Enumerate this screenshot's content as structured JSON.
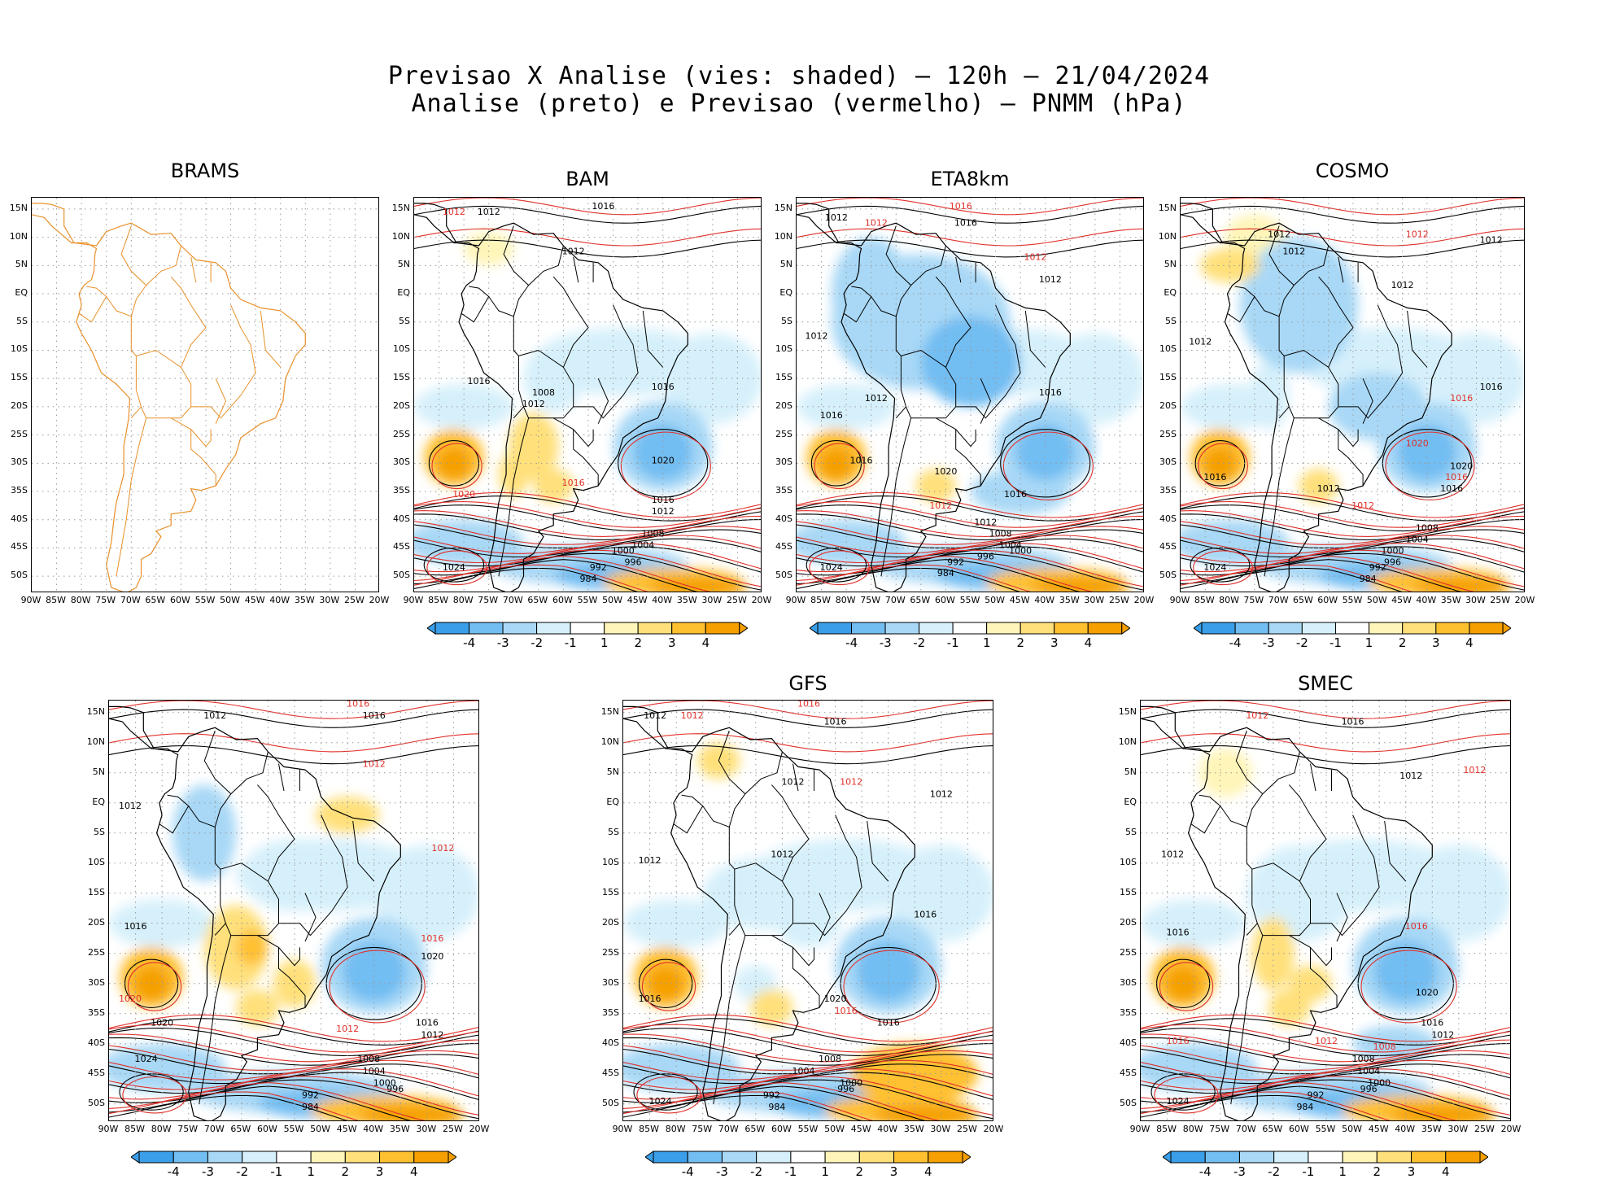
{
  "header": {
    "line1": "Previsao X Analise (vies: shaded) — 120h — 21/04/2024",
    "line2": "Analise (preto) e Previsao (vermelho) — PNMM (hPa)"
  },
  "colors": {
    "analysis_contour": "#000000",
    "forecast_contour": "#e0302a",
    "coast_brams": "#e8902a",
    "neg4": "#3a9ee8",
    "neg3": "#72bdf2",
    "neg2": "#a8d8f6",
    "neg1": "#d6f0fb",
    "zero": "#ffffff",
    "pos1": "#fff5b8",
    "pos2": "#ffe07a",
    "pos3": "#ffc030",
    "pos4": "#f5a000"
  },
  "chart_data": {
    "type": "heatmap",
    "lat_ticks": [
      "15N",
      "10N",
      "5N",
      "EQ",
      "5S",
      "10S",
      "15S",
      "20S",
      "25S",
      "30S",
      "35S",
      "40S",
      "45S",
      "50S"
    ],
    "lon_ticks": [
      "90W",
      "85W",
      "80W",
      "75W",
      "70W",
      "65W",
      "60W",
      "55W",
      "50W",
      "45W",
      "40W",
      "35W",
      "30W",
      "25W",
      "20W"
    ],
    "lat_range": [
      17,
      -53
    ],
    "lon_range": [
      -90,
      -20
    ],
    "colorbar_levels": [
      "-4",
      "-3",
      "-2",
      "-1",
      "1",
      "2",
      "3",
      "4"
    ],
    "panels": [
      {
        "title": "BRAMS",
        "has_data": false,
        "contour_labels": []
      },
      {
        "title": "BAM",
        "has_data": true,
        "contour_labels": [
          {
            "text": "1016",
            "color": "black",
            "lon": -52,
            "lat": 15
          },
          {
            "text": "1012",
            "color": "black",
            "lon": -75,
            "lat": 14
          },
          {
            "text": "1012",
            "color": "red",
            "lon": -82,
            "lat": 14
          },
          {
            "text": "1012",
            "color": "black",
            "lon": -58,
            "lat": 7
          },
          {
            "text": "1012",
            "color": "black",
            "lon": -66,
            "lat": -20
          },
          {
            "text": "1016",
            "color": "black",
            "lon": -40,
            "lat": -17
          },
          {
            "text": "1008",
            "color": "black",
            "lon": -64,
            "lat": -18
          },
          {
            "text": "1016",
            "color": "black",
            "lon": -77,
            "lat": -16
          },
          {
            "text": "1020",
            "color": "black",
            "lon": -40,
            "lat": -30
          },
          {
            "text": "1016",
            "color": "red",
            "lon": -58,
            "lat": -34
          },
          {
            "text": "1016",
            "color": "black",
            "lon": -40,
            "lat": -37
          },
          {
            "text": "1012",
            "color": "black",
            "lon": -40,
            "lat": -39
          },
          {
            "text": "1008",
            "color": "black",
            "lon": -42,
            "lat": -43
          },
          {
            "text": "1004",
            "color": "black",
            "lon": -44,
            "lat": -45
          },
          {
            "text": "1000",
            "color": "black",
            "lon": -48,
            "lat": -46
          },
          {
            "text": "996",
            "color": "black",
            "lon": -46,
            "lat": -48
          },
          {
            "text": "992",
            "color": "black",
            "lon": -53,
            "lat": -49
          },
          {
            "text": "984",
            "color": "black",
            "lon": -55,
            "lat": -51
          },
          {
            "text": "1024",
            "color": "black",
            "lon": -82,
            "lat": -49
          },
          {
            "text": "1020",
            "color": "red",
            "lon": -80,
            "lat": -36
          }
        ]
      },
      {
        "title": "ETA8km",
        "has_data": true,
        "contour_labels": [
          {
            "text": "1012",
            "color": "black",
            "lon": -82,
            "lat": 13
          },
          {
            "text": "1012",
            "color": "red",
            "lon": -74,
            "lat": 12
          },
          {
            "text": "1016",
            "color": "black",
            "lon": -56,
            "lat": 12
          },
          {
            "text": "1016",
            "color": "red",
            "lon": -57,
            "lat": 15
          },
          {
            "text": "1012",
            "color": "red",
            "lon": -42,
            "lat": 6
          },
          {
            "text": "1012",
            "color": "black",
            "lon": -39,
            "lat": 2
          },
          {
            "text": "1012",
            "color": "black",
            "lon": -86,
            "lat": -8
          },
          {
            "text": "1016",
            "color": "black",
            "lon": -39,
            "lat": -18
          },
          {
            "text": "1016",
            "color": "black",
            "lon": -83,
            "lat": -22
          },
          {
            "text": "1012",
            "color": "black",
            "lon": -74,
            "lat": -19
          },
          {
            "text": "1020",
            "color": "black",
            "lon": -60,
            "lat": -32
          },
          {
            "text": "1016",
            "color": "black",
            "lon": -77,
            "lat": -30
          },
          {
            "text": "1012",
            "color": "red",
            "lon": -61,
            "lat": -38
          },
          {
            "text": "1016",
            "color": "black",
            "lon": -46,
            "lat": -36
          },
          {
            "text": "1012",
            "color": "black",
            "lon": -52,
            "lat": -41
          },
          {
            "text": "1008",
            "color": "black",
            "lon": -49,
            "lat": -43
          },
          {
            "text": "1004",
            "color": "black",
            "lon": -47,
            "lat": -45
          },
          {
            "text": "1000",
            "color": "black",
            "lon": -45,
            "lat": -46
          },
          {
            "text": "996",
            "color": "black",
            "lon": -52,
            "lat": -47
          },
          {
            "text": "992",
            "color": "black",
            "lon": -58,
            "lat": -48
          },
          {
            "text": "984",
            "color": "black",
            "lon": -60,
            "lat": -50
          },
          {
            "text": "1024",
            "color": "black",
            "lon": -83,
            "lat": -49
          }
        ]
      },
      {
        "title": "COSMO",
        "has_data": true,
        "contour_labels": [
          {
            "text": "1012",
            "color": "red",
            "lon": -42,
            "lat": 10
          },
          {
            "text": "1012",
            "color": "black",
            "lon": -27,
            "lat": 9
          },
          {
            "text": "1012",
            "color": "black",
            "lon": -70,
            "lat": 10
          },
          {
            "text": "1012",
            "color": "black",
            "lon": -67,
            "lat": 7
          },
          {
            "text": "1012",
            "color": "black",
            "lon": -45,
            "lat": 1
          },
          {
            "text": "1012",
            "color": "black",
            "lon": -86,
            "lat": -9
          },
          {
            "text": "1016",
            "color": "black",
            "lon": -27,
            "lat": -17
          },
          {
            "text": "1016",
            "color": "red",
            "lon": -33,
            "lat": -19
          },
          {
            "text": "1020",
            "color": "red",
            "lon": -42,
            "lat": -27
          },
          {
            "text": "1020",
            "color": "black",
            "lon": -33,
            "lat": -31
          },
          {
            "text": "1016",
            "color": "red",
            "lon": -34,
            "lat": -33
          },
          {
            "text": "1016",
            "color": "black",
            "lon": -35,
            "lat": -35
          },
          {
            "text": "1012",
            "color": "black",
            "lon": -60,
            "lat": -35
          },
          {
            "text": "1016",
            "color": "black",
            "lon": -83,
            "lat": -33
          },
          {
            "text": "1012",
            "color": "red",
            "lon": -53,
            "lat": -38
          },
          {
            "text": "1008",
            "color": "black",
            "lon": -40,
            "lat": -42
          },
          {
            "text": "1004",
            "color": "black",
            "lon": -42,
            "lat": -44
          },
          {
            "text": "1000",
            "color": "black",
            "lon": -47,
            "lat": -46
          },
          {
            "text": "996",
            "color": "black",
            "lon": -47,
            "lat": -48
          },
          {
            "text": "992",
            "color": "black",
            "lon": -50,
            "lat": -49
          },
          {
            "text": "984",
            "color": "black",
            "lon": -52,
            "lat": -51
          },
          {
            "text": "1024",
            "color": "black",
            "lon": -83,
            "lat": -49
          }
        ]
      },
      {
        "title": "",
        "has_data": true,
        "contour_labels": [
          {
            "text": "1016",
            "color": "red",
            "lon": -43,
            "lat": 16
          },
          {
            "text": "1016",
            "color": "black",
            "lon": -40,
            "lat": 14
          },
          {
            "text": "1012",
            "color": "black",
            "lon": -70,
            "lat": 14
          },
          {
            "text": "1012",
            "color": "red",
            "lon": -40,
            "lat": 6
          },
          {
            "text": "1012",
            "color": "black",
            "lon": -86,
            "lat": -1
          },
          {
            "text": "1012",
            "color": "red",
            "lon": -27,
            "lat": -8
          },
          {
            "text": "1016",
            "color": "black",
            "lon": -85,
            "lat": -21
          },
          {
            "text": "1016",
            "color": "red",
            "lon": -29,
            "lat": -23
          },
          {
            "text": "1020",
            "color": "black",
            "lon": -29,
            "lat": -26
          },
          {
            "text": "1020",
            "color": "red",
            "lon": -86,
            "lat": -33
          },
          {
            "text": "1020",
            "color": "black",
            "lon": -80,
            "lat": -37
          },
          {
            "text": "1016",
            "color": "black",
            "lon": -30,
            "lat": -37
          },
          {
            "text": "1012",
            "color": "black",
            "lon": -29,
            "lat": -39
          },
          {
            "text": "1012",
            "color": "red",
            "lon": -45,
            "lat": -38
          },
          {
            "text": "1008",
            "color": "black",
            "lon": -41,
            "lat": -43
          },
          {
            "text": "1004",
            "color": "black",
            "lon": -40,
            "lat": -45
          },
          {
            "text": "1000",
            "color": "black",
            "lon": -38,
            "lat": -47
          },
          {
            "text": "996",
            "color": "black",
            "lon": -36,
            "lat": -48
          },
          {
            "text": "992",
            "color": "black",
            "lon": -52,
            "lat": -49
          },
          {
            "text": "984",
            "color": "black",
            "lon": -52,
            "lat": -51
          },
          {
            "text": "1024",
            "color": "black",
            "lon": -83,
            "lat": -43
          }
        ]
      },
      {
        "title": "GFS",
        "has_data": true,
        "contour_labels": [
          {
            "text": "1016",
            "color": "red",
            "lon": -55,
            "lat": 16
          },
          {
            "text": "1016",
            "color": "black",
            "lon": -50,
            "lat": 13
          },
          {
            "text": "1012",
            "color": "black",
            "lon": -84,
            "lat": 14
          },
          {
            "text": "1012",
            "color": "red",
            "lon": -77,
            "lat": 14
          },
          {
            "text": "1012",
            "color": "black",
            "lon": -58,
            "lat": 3
          },
          {
            "text": "1012",
            "color": "red",
            "lon": -47,
            "lat": 3
          },
          {
            "text": "1012",
            "color": "black",
            "lon": -30,
            "lat": 1
          },
          {
            "text": "1012",
            "color": "black",
            "lon": -85,
            "lat": -10
          },
          {
            "text": "1012",
            "color": "black",
            "lon": -60,
            "lat": -9
          },
          {
            "text": "1016",
            "color": "black",
            "lon": -33,
            "lat": -19
          },
          {
            "text": "1016",
            "color": "black",
            "lon": -85,
            "lat": -33
          },
          {
            "text": "1020",
            "color": "black",
            "lon": -50,
            "lat": -33
          },
          {
            "text": "1016",
            "color": "red",
            "lon": -48,
            "lat": -35
          },
          {
            "text": "1016",
            "color": "black",
            "lon": -40,
            "lat": -37
          },
          {
            "text": "1008",
            "color": "black",
            "lon": -51,
            "lat": -43
          },
          {
            "text": "1004",
            "color": "black",
            "lon": -56,
            "lat": -45
          },
          {
            "text": "1000",
            "color": "black",
            "lon": -47,
            "lat": -47
          },
          {
            "text": "996",
            "color": "black",
            "lon": -48,
            "lat": -48
          },
          {
            "text": "992",
            "color": "black",
            "lon": -62,
            "lat": -49
          },
          {
            "text": "984",
            "color": "black",
            "lon": -61,
            "lat": -51
          },
          {
            "text": "1024",
            "color": "black",
            "lon": -83,
            "lat": -50
          }
        ]
      },
      {
        "title": "SMEC",
        "has_data": true,
        "contour_labels": [
          {
            "text": "1016",
            "color": "black",
            "lon": -50,
            "lat": 13
          },
          {
            "text": "1012",
            "color": "red",
            "lon": -68,
            "lat": 14
          },
          {
            "text": "1012",
            "color": "red",
            "lon": -27,
            "lat": 5
          },
          {
            "text": "1012",
            "color": "black",
            "lon": -39,
            "lat": 4
          },
          {
            "text": "1012",
            "color": "black",
            "lon": -84,
            "lat": -9
          },
          {
            "text": "1016",
            "color": "black",
            "lon": -83,
            "lat": -22
          },
          {
            "text": "1016",
            "color": "red",
            "lon": -38,
            "lat": -21
          },
          {
            "text": "1020",
            "color": "black",
            "lon": -36,
            "lat": -32
          },
          {
            "text": "1016",
            "color": "black",
            "lon": -35,
            "lat": -37
          },
          {
            "text": "1012",
            "color": "black",
            "lon": -33,
            "lat": -39
          },
          {
            "text": "1012",
            "color": "red",
            "lon": -55,
            "lat": -40
          },
          {
            "text": "1008",
            "color": "red",
            "lon": -44,
            "lat": -41
          },
          {
            "text": "1008",
            "color": "black",
            "lon": -48,
            "lat": -43
          },
          {
            "text": "1004",
            "color": "black",
            "lon": -47,
            "lat": -45
          },
          {
            "text": "1000",
            "color": "black",
            "lon": -45,
            "lat": -47
          },
          {
            "text": "996",
            "color": "black",
            "lon": -47,
            "lat": -48
          },
          {
            "text": "992",
            "color": "black",
            "lon": -57,
            "lat": -49
          },
          {
            "text": "984",
            "color": "black",
            "lon": -59,
            "lat": -51
          },
          {
            "text": "1024",
            "color": "black",
            "lon": -83,
            "lat": -50
          },
          {
            "text": "1016",
            "color": "red",
            "lon": -83,
            "lat": -40
          }
        ]
      }
    ]
  }
}
